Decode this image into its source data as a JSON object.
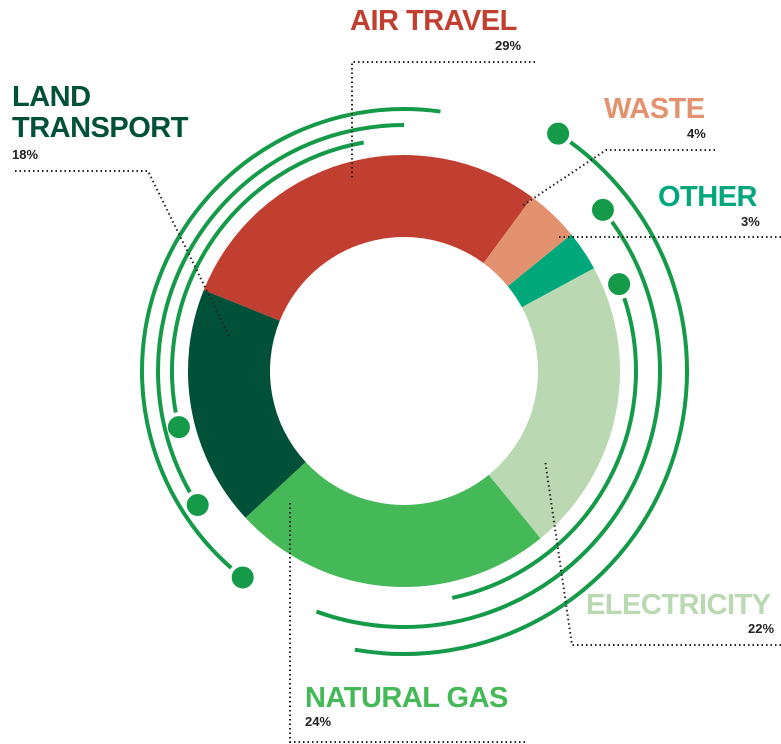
{
  "chart_data": {
    "type": "pie",
    "categories": [
      "AIR TRAVEL",
      "WASTE",
      "OTHER",
      "ELECTRICITY",
      "NATURAL GAS",
      "LAND TRANSPORT"
    ],
    "values": [
      29,
      4,
      3,
      22,
      24,
      18
    ],
    "value_labels": [
      "29%",
      "4%",
      "3%",
      "22%",
      "24%",
      "18%"
    ],
    "colors": [
      "#c13f31",
      "#e3926f",
      "#00a77b",
      "#bad9b2",
      "#45b857",
      "#005137"
    ]
  }
}
